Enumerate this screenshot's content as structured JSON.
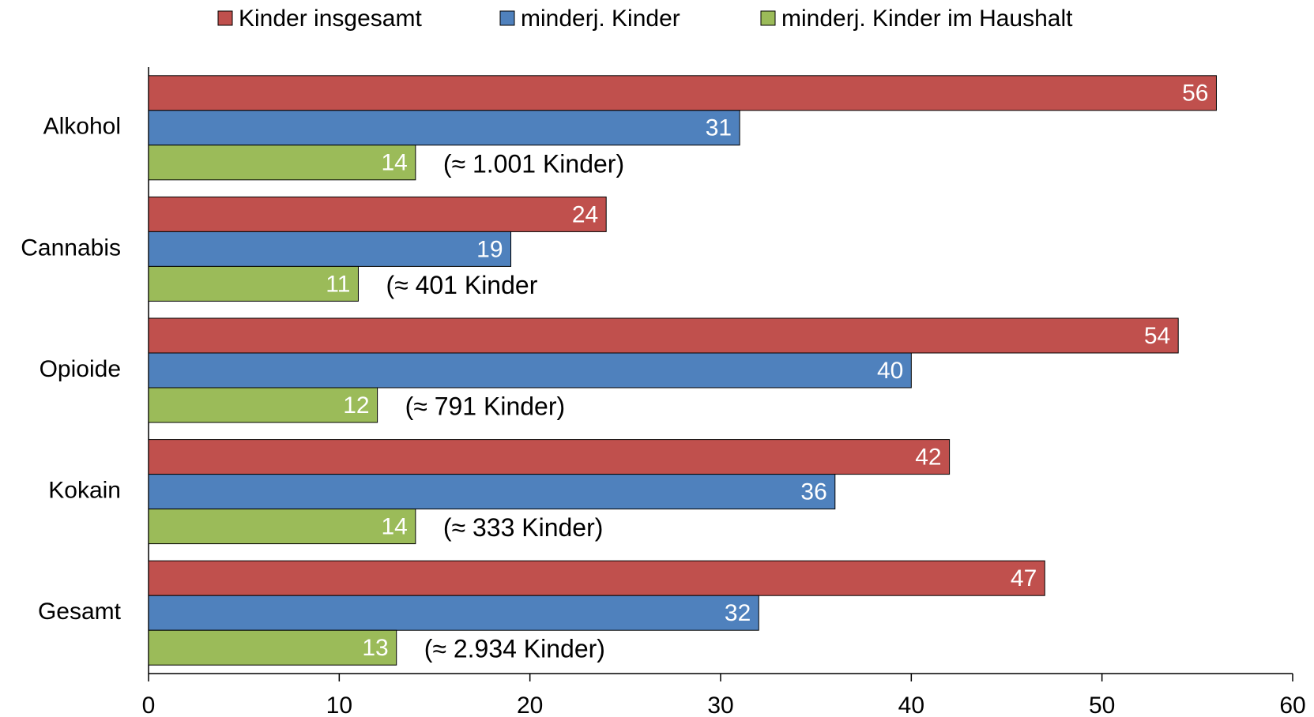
{
  "chart_data": {
    "type": "bar",
    "orientation": "horizontal",
    "categories": [
      "Alkohol",
      "Cannabis",
      "Opioide",
      "Kokain",
      "Gesamt"
    ],
    "series": [
      {
        "name": "Kinder insgesamt",
        "color": "#c0504d",
        "values": [
          56,
          24,
          54,
          42,
          47
        ]
      },
      {
        "name": "minderj. Kinder",
        "color": "#4f81bd",
        "values": [
          31,
          19,
          40,
          36,
          32
        ]
      },
      {
        "name": "minderj. Kinder im Haushalt",
        "color": "#9bbb59",
        "values": [
          14,
          11,
          12,
          14,
          13
        ]
      }
    ],
    "annotations": [
      "(≈ 1.001 Kinder)",
      "(≈ 401 Kinder",
      "(≈ 791 Kinder)",
      "(≈ 333 Kinder)",
      "(≈ 2.934  Kinder)"
    ],
    "xlim": [
      0,
      60
    ],
    "xticks": [
      0,
      10,
      20,
      30,
      40,
      50,
      60
    ],
    "legend": "top",
    "grid": false
  }
}
